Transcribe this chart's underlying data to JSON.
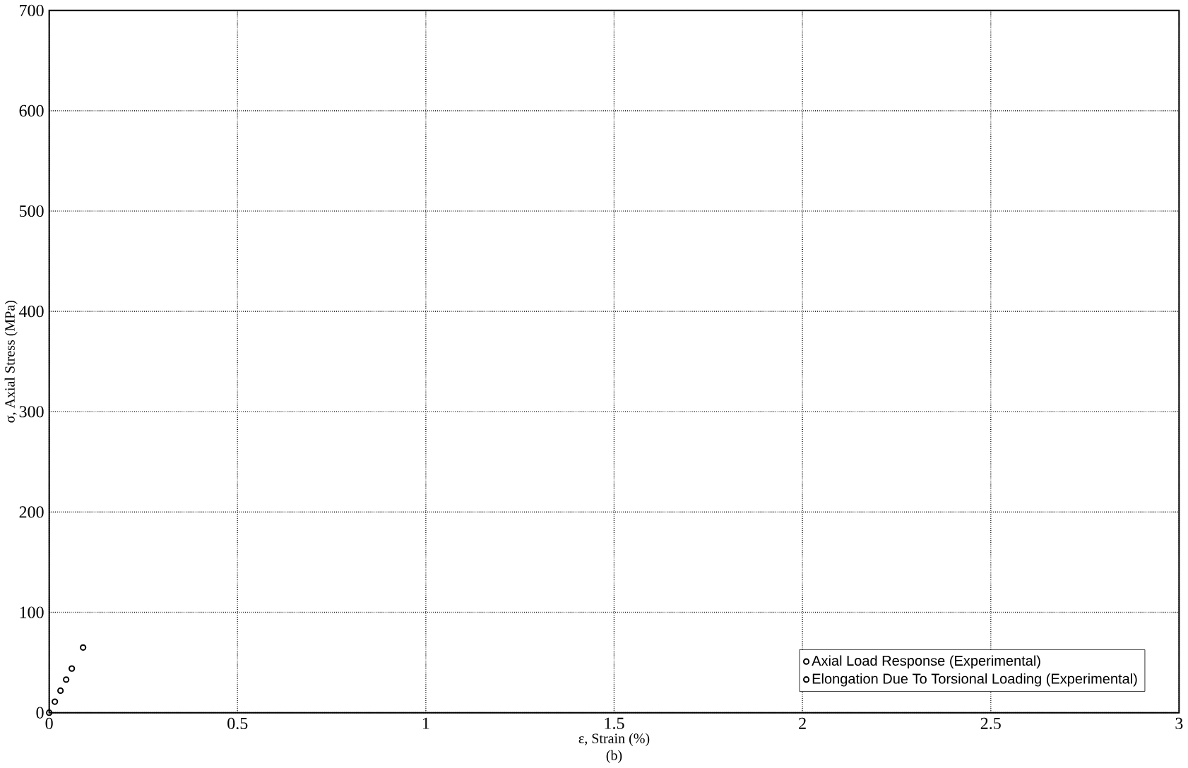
{
  "chart_data": {
    "type": "scatter",
    "xlabel": "ε, Strain (%)",
    "ylabel": "σ, Axial Stress (MPa)",
    "annotations": [
      "(b)"
    ],
    "xlim": [
      0,
      3
    ],
    "ylim": [
      0,
      700
    ],
    "xticks": [
      0,
      0.5,
      1,
      1.5,
      2,
      2.5,
      3
    ],
    "yticks": [
      0,
      100,
      200,
      300,
      400,
      500,
      600,
      700
    ],
    "grid": true,
    "legend": "bottom right",
    "marker": "circle",
    "series": [
      {
        "name": "Axial Load Response (Experimental)",
        "color": "#000000",
        "x": [
          0,
          0.03,
          0.06,
          0.09
        ],
        "values": [
          0,
          22,
          44,
          65
        ]
      },
      {
        "name": "Elongation Due To Torsional Loading (Experimental)",
        "color": "#000000",
        "x": [
          0.015,
          0.045
        ],
        "values": [
          11,
          33
        ]
      }
    ]
  }
}
